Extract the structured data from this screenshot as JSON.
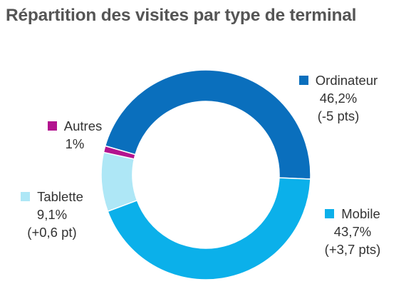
{
  "chart_data": {
    "type": "pie",
    "title": "Répartition des visites par type de terminal",
    "donut": true,
    "slices": [
      {
        "name": "Ordinateur",
        "value": 46.2,
        "value_label": "46,2%",
        "change_label": "(-5 pts)",
        "color": "#0a6fbd"
      },
      {
        "name": "Mobile",
        "value": 43.7,
        "value_label": "43,7%",
        "change_label": "(+3,7 pts)",
        "color": "#0bb0ea"
      },
      {
        "name": "Tablette",
        "value": 9.1,
        "value_label": "9,1%",
        "change_label": "(+0,6 pt)",
        "color": "#aee7f6"
      },
      {
        "name": "Autres",
        "value": 1,
        "value_label": "1%",
        "change_label": "",
        "color": "#b3138f"
      }
    ]
  }
}
